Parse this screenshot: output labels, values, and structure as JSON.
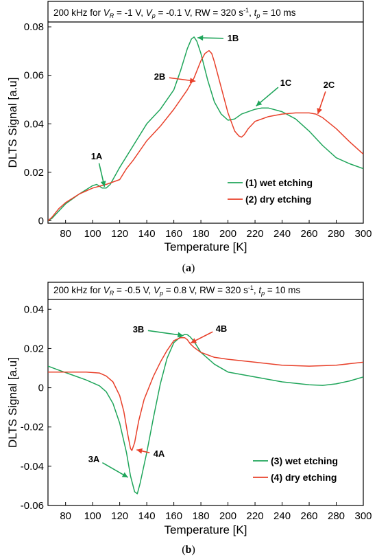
{
  "chart_data": [
    {
      "panel": "a",
      "type": "line",
      "title_parts": [
        {
          "t": "200 kHz for "
        },
        {
          "t": "V",
          "i": true
        },
        {
          "t": "R",
          "sub": true,
          "i": true
        },
        {
          "t": " = -1 V, "
        },
        {
          "t": "V",
          "i": true
        },
        {
          "t": "p",
          "sub": true,
          "i": true
        },
        {
          "t": " = -0.1 V, RW = 320 s"
        },
        {
          "t": "-1",
          "sup": true
        },
        {
          "t": ", "
        },
        {
          "t": "t",
          "i": true
        },
        {
          "t": "p",
          "sub": true,
          "i": true
        },
        {
          "t": " = 10 ms"
        }
      ],
      "xlabel": "Temperature [K]",
      "ylabel": "DLTS Signal [a.u]",
      "xlim": [
        67,
        300
      ],
      "ylim": [
        -0.001,
        0.082
      ],
      "xticks": [
        80,
        100,
        120,
        140,
        160,
        180,
        200,
        220,
        240,
        260,
        280,
        300
      ],
      "yticks": [
        0,
        0.02,
        0.04,
        0.06,
        0.08
      ],
      "ytick_labels": [
        "0",
        "0.02",
        "0.04",
        "0.06",
        "0.08"
      ],
      "grid": false,
      "legend_position": "lower-right",
      "series": [
        {
          "name": "(1) wet etching",
          "color": "#1fa55a",
          "x": [
            67,
            70,
            75,
            80,
            90,
            100,
            103,
            107,
            110,
            113,
            117,
            120,
            130,
            140,
            150,
            160,
            165,
            170,
            173,
            175,
            177,
            180,
            185,
            190,
            195,
            200,
            205,
            210,
            220,
            225,
            230,
            240,
            250,
            260,
            270,
            280,
            290,
            300
          ],
          "y": [
            0.0,
            0.001,
            0.004,
            0.007,
            0.011,
            0.0145,
            0.015,
            0.0135,
            0.0135,
            0.015,
            0.019,
            0.022,
            0.031,
            0.04,
            0.046,
            0.054,
            0.062,
            0.071,
            0.075,
            0.0758,
            0.074,
            0.069,
            0.058,
            0.049,
            0.044,
            0.0415,
            0.042,
            0.044,
            0.046,
            0.0465,
            0.0465,
            0.045,
            0.042,
            0.037,
            0.031,
            0.026,
            0.0235,
            0.0215
          ]
        },
        {
          "name": "(2) dry etching",
          "color": "#e8402a",
          "x": [
            67,
            70,
            75,
            80,
            90,
            100,
            110,
            115,
            120,
            125,
            130,
            140,
            150,
            160,
            170,
            175,
            180,
            183,
            186,
            188,
            190,
            195,
            200,
            205,
            208,
            210,
            212,
            215,
            220,
            230,
            240,
            250,
            260,
            265,
            270,
            280,
            290,
            300
          ],
          "y": [
            0.0,
            0.0015,
            0.005,
            0.0075,
            0.011,
            0.0135,
            0.015,
            0.016,
            0.017,
            0.0215,
            0.025,
            0.033,
            0.039,
            0.046,
            0.054,
            0.059,
            0.066,
            0.069,
            0.0702,
            0.069,
            0.0655,
            0.055,
            0.0445,
            0.037,
            0.035,
            0.0345,
            0.0355,
            0.038,
            0.041,
            0.043,
            0.044,
            0.0445,
            0.0445,
            0.044,
            0.0425,
            0.038,
            0.0325,
            0.0275
          ]
        }
      ],
      "annotations": [
        {
          "label": "1A",
          "x": 109,
          "y": 0.0135,
          "color": "#1fa55a"
        },
        {
          "label": "1B",
          "x": 176.5,
          "y": 0.0755,
          "color": "#1fa55a"
        },
        {
          "label": "2B",
          "x": 177,
          "y": 0.0575,
          "color": "#e8402a"
        },
        {
          "label": "1C",
          "x": 220,
          "y": 0.047,
          "color": "#1fa55a"
        },
        {
          "label": "2C",
          "x": 266,
          "y": 0.0435,
          "color": "#e8402a"
        }
      ],
      "caption": "(a)",
      "caption_letter": "a"
    },
    {
      "panel": "b",
      "type": "line",
      "title_parts": [
        {
          "t": "200 kHz for "
        },
        {
          "t": "V",
          "i": true
        },
        {
          "t": "R",
          "sub": true,
          "i": true
        },
        {
          "t": " = -0.5 V, "
        },
        {
          "t": "V",
          "i": true
        },
        {
          "t": "p",
          "sub": true,
          "i": true
        },
        {
          "t": " = 0.8 V, RW = 320 s"
        },
        {
          "t": "-1",
          "sup": true
        },
        {
          "t": ", "
        },
        {
          "t": "t",
          "i": true
        },
        {
          "t": "p",
          "sub": true,
          "i": true
        },
        {
          "t": " = 10 ms"
        }
      ],
      "xlabel": "Temperature [K]",
      "ylabel": "DLTS Signal [a.u]",
      "xlim": [
        67,
        300
      ],
      "ylim": [
        -0.06,
        0.045
      ],
      "xticks": [
        80,
        100,
        120,
        140,
        160,
        180,
        200,
        220,
        240,
        260,
        280,
        300
      ],
      "yticks": [
        -0.06,
        -0.04,
        -0.02,
        0,
        0.02,
        0.04
      ],
      "ytick_labels": [
        "-0.06",
        "-0.04",
        "-0.02",
        "0",
        "0.02",
        "0.04"
      ],
      "grid": false,
      "legend_position": "lower-right",
      "series": [
        {
          "name": "(3) wet etching",
          "color": "#1fa55a",
          "x": [
            67,
            75,
            85,
            95,
            105,
            110,
            115,
            120,
            125,
            128,
            131,
            133,
            135,
            140,
            145,
            150,
            155,
            160,
            165,
            168,
            170,
            172,
            175,
            180,
            190,
            200,
            220,
            240,
            260,
            270,
            280,
            290,
            300
          ],
          "y": [
            0.011,
            0.009,
            0.0065,
            0.004,
            0.001,
            -0.002,
            -0.008,
            -0.018,
            -0.033,
            -0.045,
            -0.053,
            -0.054,
            -0.049,
            -0.033,
            -0.015,
            0.002,
            0.015,
            0.023,
            0.026,
            0.0272,
            0.027,
            0.026,
            0.0235,
            0.018,
            0.012,
            0.008,
            0.0055,
            0.003,
            0.0015,
            0.0012,
            0.002,
            0.0035,
            0.0055
          ]
        },
        {
          "name": "(4) dry etching",
          "color": "#e8402a",
          "x": [
            67,
            80,
            95,
            105,
            110,
            115,
            120,
            123,
            126,
            128,
            129,
            131,
            134,
            138,
            145,
            150,
            155,
            160,
            165,
            168,
            170,
            172,
            175,
            180,
            190,
            200,
            220,
            240,
            260,
            280,
            300
          ],
          "y": [
            0.008,
            0.008,
            0.008,
            0.0075,
            0.006,
            0.003,
            -0.004,
            -0.012,
            -0.024,
            -0.031,
            -0.032,
            -0.028,
            -0.017,
            -0.006,
            0.006,
            0.013,
            0.019,
            0.024,
            0.0255,
            0.0255,
            0.0245,
            0.0225,
            0.0205,
            0.018,
            0.0155,
            0.0145,
            0.013,
            0.0115,
            0.011,
            0.0115,
            0.013
          ]
        }
      ],
      "annotations": [
        {
          "label": "3A",
          "x": 127,
          "y": -0.046,
          "color": "#1fa55a"
        },
        {
          "label": "4A",
          "x": 131.5,
          "y": -0.0315,
          "color": "#e8402a"
        },
        {
          "label": "3B",
          "x": 168,
          "y": 0.0265,
          "color": "#1fa55a"
        },
        {
          "label": "4B",
          "x": 171.5,
          "y": 0.0225,
          "color": "#e8402a"
        }
      ],
      "caption": "(b)",
      "caption_letter": "b"
    }
  ]
}
